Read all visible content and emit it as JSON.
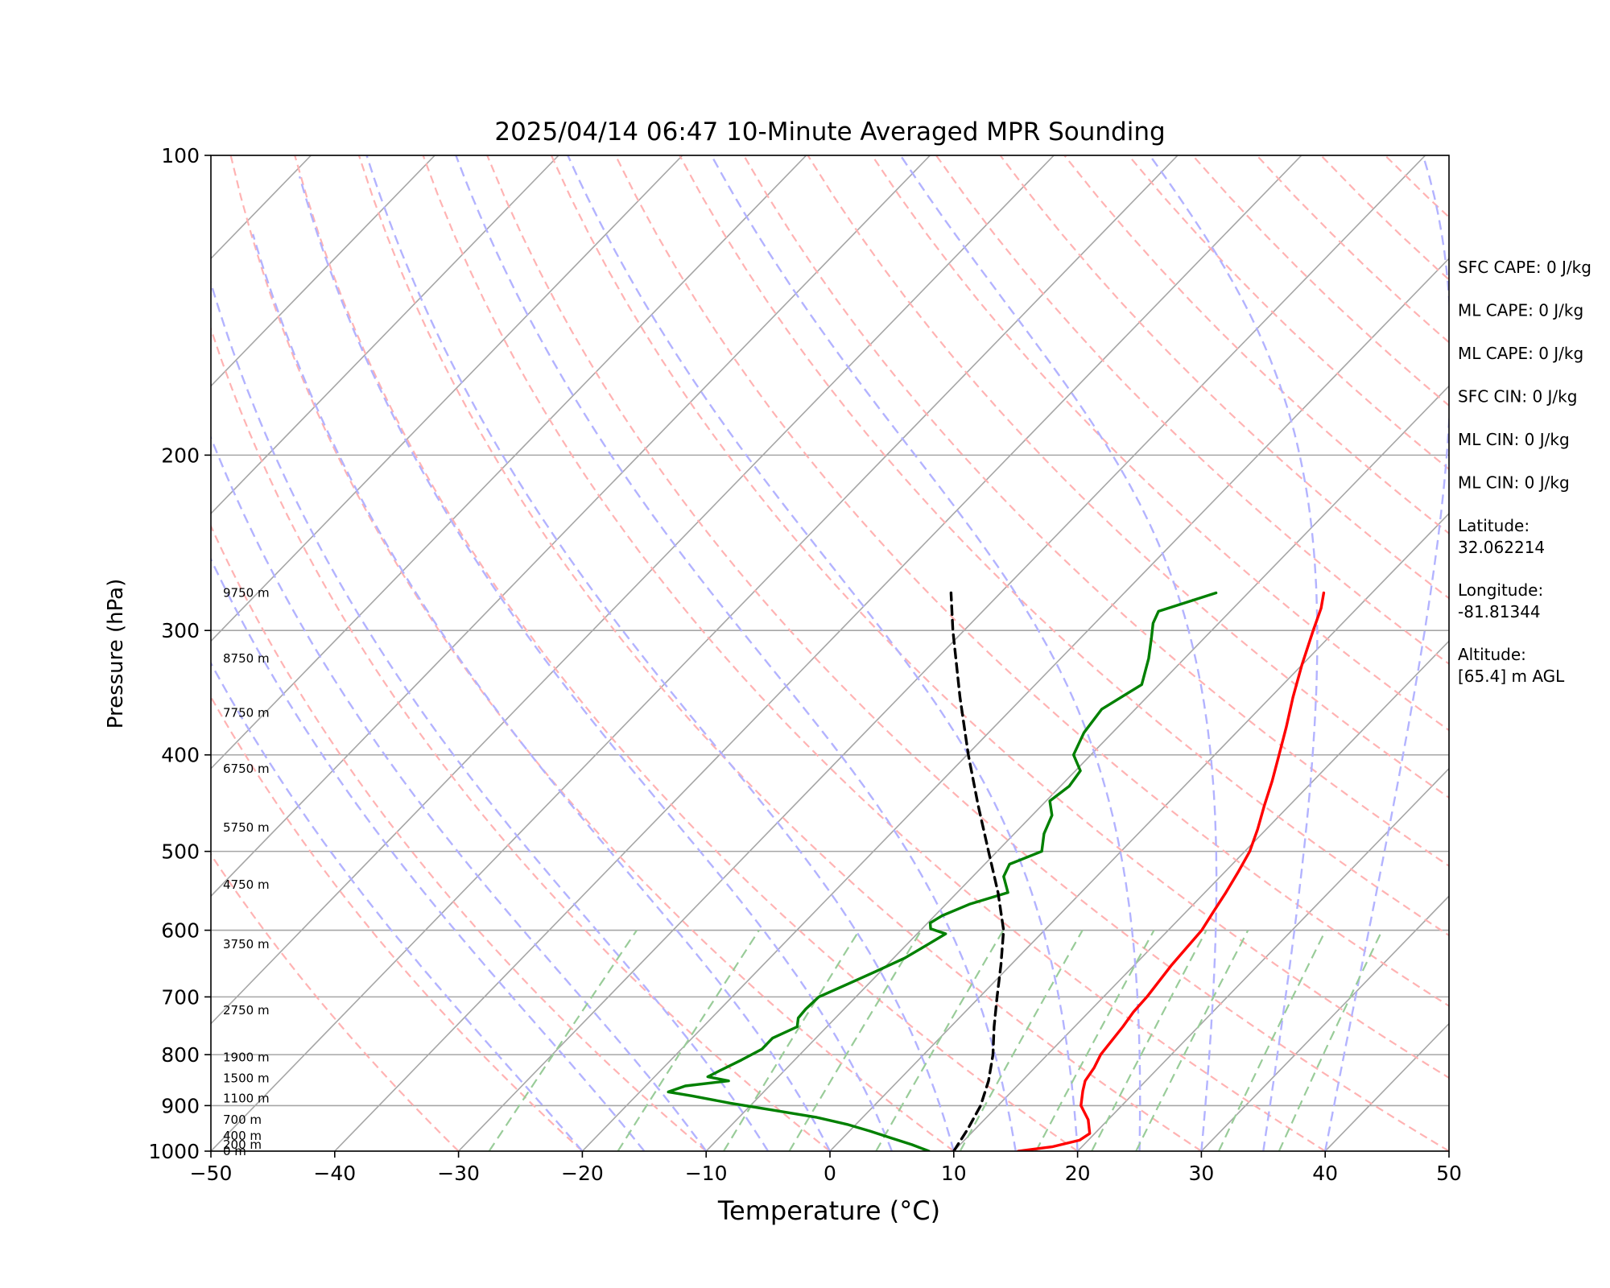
{
  "chart_data": {
    "type": "line",
    "title": "2025/04/14 06:47 10-Minute Averaged MPR Sounding",
    "xlabel": "Temperature (°C)",
    "ylabel": "Pressure (hPa)",
    "xlim": [
      -50,
      50
    ],
    "ylim": [
      1000,
      100
    ],
    "y_scale": "log",
    "x_ticks": [
      "−50",
      "−40",
      "−30",
      "−20",
      "−10",
      "0",
      "10",
      "20",
      "30",
      "40",
      "50"
    ],
    "y_ticks": [
      "100",
      "200",
      "300",
      "400",
      "500",
      "600",
      "700",
      "800",
      "900",
      "1000"
    ],
    "height_labels": [
      {
        "label": "9750 m",
        "p": 275
      },
      {
        "label": "8750 m",
        "p": 320
      },
      {
        "label": "7750 m",
        "p": 363
      },
      {
        "label": "6750 m",
        "p": 413
      },
      {
        "label": "5750 m",
        "p": 473
      },
      {
        "label": "4750 m",
        "p": 540
      },
      {
        "label": "3750 m",
        "p": 620
      },
      {
        "label": "2750 m",
        "p": 722
      },
      {
        "label": "1900 m",
        "p": 805
      },
      {
        "label": "1500 m",
        "p": 845
      },
      {
        "label": "1100 m",
        "p": 885
      },
      {
        "label": "700 m",
        "p": 930
      },
      {
        "label": "400 m",
        "p": 965
      },
      {
        "label": "200 m",
        "p": 985
      },
      {
        "label": "0 m",
        "p": 1000
      }
    ],
    "series": [
      {
        "role": "temperature",
        "color": "#ff0000",
        "points": [
          [
            1000,
            15.2
          ],
          [
            990,
            17.6
          ],
          [
            975,
            19.3
          ],
          [
            960,
            19.6
          ],
          [
            930,
            18.4
          ],
          [
            900,
            16.7
          ],
          [
            870,
            15.7
          ],
          [
            850,
            15.1
          ],
          [
            825,
            14.8
          ],
          [
            800,
            14.3
          ],
          [
            775,
            14.1
          ],
          [
            750,
            13.9
          ],
          [
            725,
            13.6
          ],
          [
            700,
            13.5
          ],
          [
            650,
            13.0
          ],
          [
            600,
            12.7
          ],
          [
            575,
            12.2
          ],
          [
            550,
            11.7
          ],
          [
            525,
            11.1
          ],
          [
            500,
            10.4
          ],
          [
            475,
            9.3
          ],
          [
            450,
            8.0
          ],
          [
            425,
            6.7
          ],
          [
            400,
            5.2
          ],
          [
            375,
            3.6
          ],
          [
            350,
            1.8
          ],
          [
            325,
            0.0
          ],
          [
            300,
            -1.8
          ],
          [
            285,
            -2.9
          ],
          [
            275,
            -3.9
          ]
        ]
      },
      {
        "role": "dewpoint",
        "color": "#008000",
        "points": [
          [
            1000,
            8.0
          ],
          [
            985,
            6.1
          ],
          [
            970,
            3.9
          ],
          [
            955,
            1.7
          ],
          [
            940,
            -0.7
          ],
          [
            925,
            -3.7
          ],
          [
            910,
            -7.7
          ],
          [
            895,
            -11.8
          ],
          [
            880,
            -15.5
          ],
          [
            872,
            -17.7
          ],
          [
            860,
            -16.8
          ],
          [
            850,
            -13.7
          ],
          [
            842,
            -15.7
          ],
          [
            830,
            -15.2
          ],
          [
            810,
            -14.3
          ],
          [
            790,
            -13.5
          ],
          [
            770,
            -13.5
          ],
          [
            750,
            -12.4
          ],
          [
            735,
            -13.0
          ],
          [
            720,
            -13.1
          ],
          [
            700,
            -13.0
          ],
          [
            680,
            -11.7
          ],
          [
            660,
            -10.4
          ],
          [
            640,
            -9.1
          ],
          [
            620,
            -8.3
          ],
          [
            605,
            -7.7
          ],
          [
            598,
            -9.3
          ],
          [
            590,
            -9.8
          ],
          [
            580,
            -9.4
          ],
          [
            565,
            -8.1
          ],
          [
            550,
            -5.9
          ],
          [
            530,
            -7.5
          ],
          [
            515,
            -8.0
          ],
          [
            500,
            -6.4
          ],
          [
            480,
            -7.6
          ],
          [
            460,
            -8.4
          ],
          [
            445,
            -9.7
          ],
          [
            430,
            -9.3
          ],
          [
            415,
            -9.6
          ],
          [
            400,
            -11.4
          ],
          [
            380,
            -12.3
          ],
          [
            360,
            -12.7
          ],
          [
            340,
            -11.4
          ],
          [
            320,
            -12.9
          ],
          [
            305,
            -14.3
          ],
          [
            295,
            -15.3
          ],
          [
            287,
            -15.8
          ],
          [
            275,
            -12.6
          ]
        ]
      },
      {
        "role": "parcel",
        "color": "#000000",
        "dashed": true,
        "points": [
          [
            1000,
            10.0
          ],
          [
            950,
            9.4
          ],
          [
            900,
            8.6
          ],
          [
            850,
            7.3
          ],
          [
            800,
            5.6
          ],
          [
            750,
            3.5
          ],
          [
            700,
            1.4
          ],
          [
            650,
            -0.8
          ],
          [
            600,
            -3.3
          ],
          [
            550,
            -6.7
          ],
          [
            500,
            -10.7
          ],
          [
            450,
            -15.1
          ],
          [
            400,
            -19.9
          ],
          [
            350,
            -25.1
          ],
          [
            300,
            -30.9
          ],
          [
            275,
            -34.0
          ]
        ]
      }
    ]
  },
  "side_panel": [
    {
      "text": "SFC CAPE: 0 J/kg"
    },
    {
      "text": "ML CAPE: 0 J/kg"
    },
    {
      "text": "ML CAPE: 0 J/kg"
    },
    {
      "text": "SFC CIN: 0 J/kg"
    },
    {
      "text": "ML CIN: 0 J/kg"
    },
    {
      "text": "ML CIN: 0 J/kg"
    },
    {
      "text": "Latitude:",
      "text2": "32.062214"
    },
    {
      "text": "Longitude:",
      "text2": "-81.81344"
    },
    {
      "text": "Altitude:",
      "text2": "[65.4] m AGL"
    }
  ],
  "colors": {
    "dry_adiabats": "#ffb3b3",
    "moist_adiabats": "#b3b3ff",
    "mixing_ratio": "#99cc99",
    "isotherms": "#a6a6a6",
    "isobars": "#a6a6a6"
  }
}
